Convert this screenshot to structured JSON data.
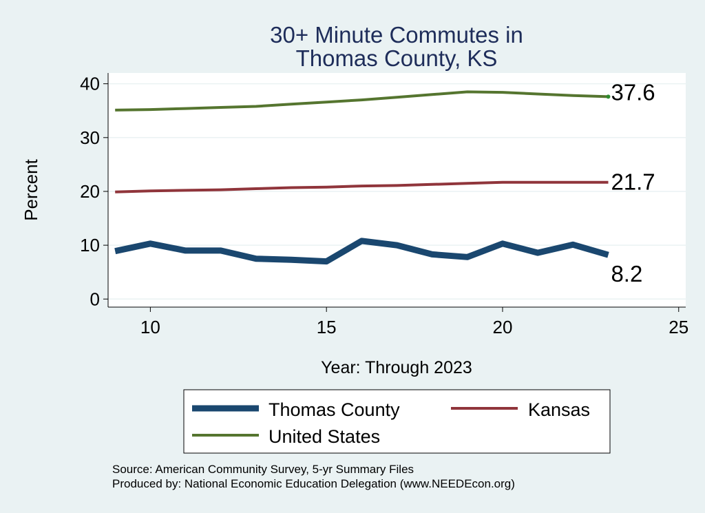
{
  "chart_data": {
    "type": "line",
    "title_lines": [
      "30+ Minute Commutes in",
      "Thomas County, KS"
    ],
    "xlabel": "Year: Through 2023",
    "ylabel": "Percent",
    "xlim": [
      8.8,
      25.2
    ],
    "ylim": [
      -1.5,
      42
    ],
    "xticks": [
      10,
      15,
      20,
      25
    ],
    "yticks": [
      0,
      10,
      20,
      30,
      40
    ],
    "grid": true,
    "legend_position": "bottom",
    "x": [
      9,
      10,
      11,
      12,
      13,
      14,
      15,
      16,
      17,
      18,
      19,
      20,
      21,
      22,
      23
    ],
    "series": [
      {
        "name": "Thomas County",
        "color": "#1A476F",
        "values": [
          8.9,
          10.3,
          9.0,
          9.0,
          7.5,
          7.3,
          7.0,
          10.8,
          10.0,
          8.3,
          7.8,
          10.3,
          8.6,
          10.1,
          8.2
        ],
        "end_label": "8.2"
      },
      {
        "name": "Kansas",
        "color": "#90353B",
        "values": [
          19.9,
          20.1,
          20.2,
          20.3,
          20.5,
          20.7,
          20.8,
          21.0,
          21.1,
          21.3,
          21.5,
          21.7,
          21.7,
          21.7,
          21.7
        ],
        "end_label": "21.7"
      },
      {
        "name": "United States",
        "color": "#55752F",
        "values": [
          35.1,
          35.2,
          35.4,
          35.6,
          35.8,
          36.2,
          36.6,
          37.0,
          37.5,
          38.0,
          38.5,
          38.4,
          38.1,
          37.8,
          37.6
        ],
        "end_label": "37.6"
      }
    ]
  },
  "legend": {
    "items": [
      {
        "label": "Thomas County"
      },
      {
        "label": "Kansas"
      },
      {
        "label": "United States"
      }
    ]
  },
  "footer": {
    "source": "Source: American Community Survey, 5-yr Summary Files",
    "produced": "Produced by: National Economic Education Delegation (www.NEEDEcon.org)"
  }
}
